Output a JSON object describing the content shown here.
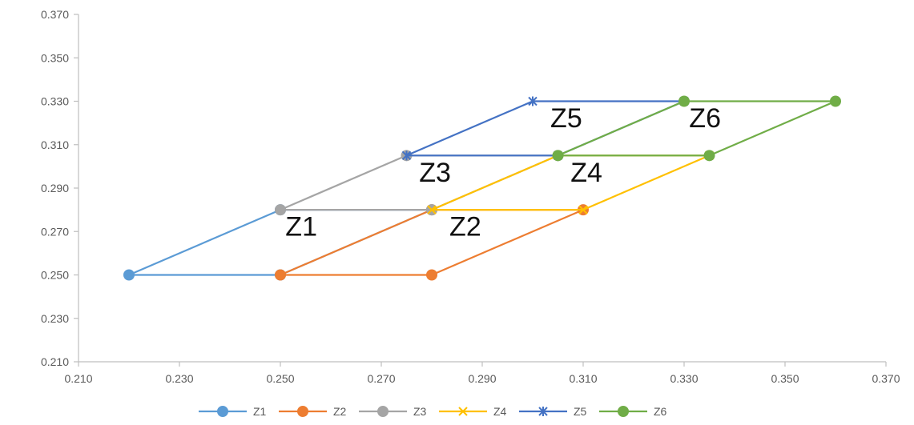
{
  "chart_data": {
    "type": "line",
    "title": "",
    "xlabel": "",
    "ylabel": "",
    "xlim": [
      0.21,
      0.37
    ],
    "ylim": [
      0.21,
      0.37
    ],
    "x_ticks": [
      0.21,
      0.23,
      0.25,
      0.27,
      0.29,
      0.31,
      0.33,
      0.35,
      0.37
    ],
    "y_ticks": [
      0.21,
      0.23,
      0.25,
      0.27,
      0.29,
      0.31,
      0.33,
      0.35,
      0.37
    ],
    "x_tick_labels": [
      "0.210",
      "0.230",
      "0.250",
      "0.270",
      "0.290",
      "0.310",
      "0.330",
      "0.350",
      "0.370"
    ],
    "y_tick_labels": [
      "0.210",
      "0.230",
      "0.250",
      "0.270",
      "0.290",
      "0.310",
      "0.330",
      "0.350",
      "0.370"
    ],
    "grid": false,
    "legend_position": "bottom",
    "series": [
      {
        "name": "Z1",
        "color": "#5b9bd5",
        "marker": "circle",
        "points": [
          [
            0.22,
            0.25
          ],
          [
            0.25,
            0.28
          ],
          [
            0.28,
            0.28
          ],
          [
            0.25,
            0.25
          ],
          [
            0.22,
            0.25
          ]
        ]
      },
      {
        "name": "Z2",
        "color": "#ed7d31",
        "marker": "circle",
        "points": [
          [
            0.25,
            0.25
          ],
          [
            0.28,
            0.28
          ],
          [
            0.31,
            0.28
          ],
          [
            0.28,
            0.25
          ],
          [
            0.25,
            0.25
          ]
        ]
      },
      {
        "name": "Z3",
        "color": "#a5a5a5",
        "marker": "circle",
        "points": [
          [
            0.25,
            0.28
          ],
          [
            0.275,
            0.305
          ],
          [
            0.305,
            0.305
          ],
          [
            0.28,
            0.28
          ],
          [
            0.25,
            0.28
          ]
        ]
      },
      {
        "name": "Z4",
        "color": "#ffc000",
        "marker": "x",
        "points": [
          [
            0.28,
            0.28
          ],
          [
            0.305,
            0.305
          ],
          [
            0.335,
            0.305
          ],
          [
            0.31,
            0.28
          ],
          [
            0.28,
            0.28
          ]
        ]
      },
      {
        "name": "Z5",
        "color": "#4472c4",
        "marker": "star",
        "points": [
          [
            0.275,
            0.305
          ],
          [
            0.3,
            0.33
          ],
          [
            0.33,
            0.33
          ],
          [
            0.305,
            0.305
          ],
          [
            0.275,
            0.305
          ]
        ]
      },
      {
        "name": "Z6",
        "color": "#70ad47",
        "marker": "circle",
        "points": [
          [
            0.305,
            0.305
          ],
          [
            0.33,
            0.33
          ],
          [
            0.36,
            0.33
          ],
          [
            0.335,
            0.305
          ],
          [
            0.305,
            0.305
          ]
        ]
      }
    ],
    "annotations": [
      {
        "text": "Z1",
        "x": 0.251,
        "y": 0.268
      },
      {
        "text": "Z2",
        "x": 0.2835,
        "y": 0.268
      },
      {
        "text": "Z3",
        "x": 0.2775,
        "y": 0.293
      },
      {
        "text": "Z4",
        "x": 0.3075,
        "y": 0.293
      },
      {
        "text": "Z5",
        "x": 0.3035,
        "y": 0.318
      },
      {
        "text": "Z6",
        "x": 0.331,
        "y": 0.318
      }
    ]
  }
}
